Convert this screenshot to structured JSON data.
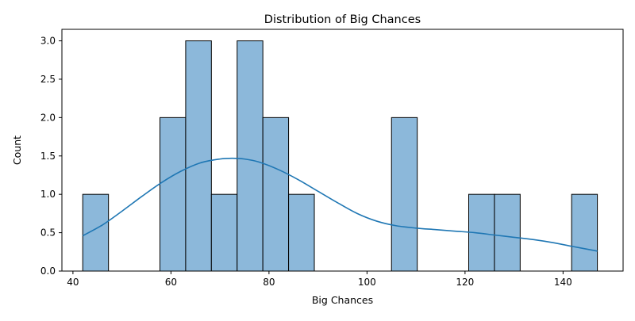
{
  "chart_data": {
    "type": "bar",
    "title": "Distribution of Big Chances",
    "xlabel": "Big Chances",
    "ylabel": "Count",
    "xlim": [
      37.75,
      152.25
    ],
    "ylim": [
      0,
      3.15
    ],
    "x_ticks": [
      40,
      60,
      80,
      100,
      120,
      140
    ],
    "y_ticks": [
      0.0,
      0.5,
      1.0,
      1.5,
      2.0,
      2.5,
      3.0
    ],
    "y_tick_labels": [
      "0.0",
      "0.5",
      "1.0",
      "1.5",
      "2.0",
      "2.5",
      "3.0"
    ],
    "bins": [
      {
        "x0": 42.0,
        "x1": 47.25,
        "count": 1
      },
      {
        "x0": 47.25,
        "x1": 52.5,
        "count": 0
      },
      {
        "x0": 52.5,
        "x1": 57.75,
        "count": 0
      },
      {
        "x0": 57.75,
        "x1": 63.0,
        "count": 2
      },
      {
        "x0": 63.0,
        "x1": 68.25,
        "count": 3
      },
      {
        "x0": 68.25,
        "x1": 73.5,
        "count": 1
      },
      {
        "x0": 73.5,
        "x1": 78.75,
        "count": 3
      },
      {
        "x0": 78.75,
        "x1": 84.0,
        "count": 2
      },
      {
        "x0": 84.0,
        "x1": 89.25,
        "count": 1
      },
      {
        "x0": 89.25,
        "x1": 94.5,
        "count": 0
      },
      {
        "x0": 94.5,
        "x1": 99.75,
        "count": 0
      },
      {
        "x0": 99.75,
        "x1": 105.0,
        "count": 0
      },
      {
        "x0": 105.0,
        "x1": 110.25,
        "count": 2
      },
      {
        "x0": 110.25,
        "x1": 115.5,
        "count": 0
      },
      {
        "x0": 115.5,
        "x1": 120.75,
        "count": 0
      },
      {
        "x0": 120.75,
        "x1": 126.0,
        "count": 1
      },
      {
        "x0": 126.0,
        "x1": 131.25,
        "count": 1
      },
      {
        "x0": 131.25,
        "x1": 136.5,
        "count": 0
      },
      {
        "x0": 136.5,
        "x1": 141.75,
        "count": 0
      },
      {
        "x0": 141.75,
        "x1": 147.0,
        "count": 1
      }
    ],
    "kde_curve": {
      "x": [
        42,
        46,
        50,
        54,
        58,
        62,
        66,
        70,
        72.5,
        75,
        78,
        82,
        86,
        90,
        94,
        98,
        102,
        106,
        110,
        114,
        118,
        122,
        126,
        130,
        134,
        138,
        142,
        147
      ],
      "y": [
        0.46,
        0.6,
        0.78,
        0.97,
        1.15,
        1.3,
        1.41,
        1.46,
        1.47,
        1.46,
        1.42,
        1.32,
        1.19,
        1.04,
        0.89,
        0.75,
        0.65,
        0.59,
        0.56,
        0.54,
        0.52,
        0.5,
        0.47,
        0.44,
        0.41,
        0.37,
        0.32,
        0.26
      ]
    },
    "grid": false,
    "legend": "none"
  },
  "colors": {
    "bar_fill": "#8cb8da",
    "bar_edge": "#000000",
    "kde_line": "#1f77b4",
    "axes": "#000000",
    "background": "#ffffff"
  }
}
